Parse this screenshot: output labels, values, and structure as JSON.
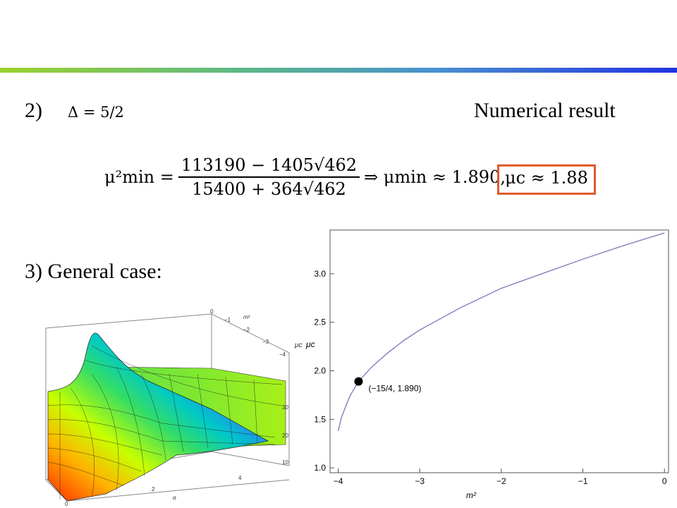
{
  "slide": {
    "case2_label": "2)",
    "case2_formula": "Δ = 5/2",
    "numerical_label": "Numerical result",
    "mu_min_lhs": "μ²min =",
    "mu_min_numerator": "113190 − 1405√462",
    "mu_min_denominator": "15400 + 364√462",
    "mu_min_rhs": "⇒ μmin ≈ 1.890,",
    "mu_c_result": "μc ≈ 1.88",
    "case3_label": "3) General case:"
  },
  "colors": {
    "accent_box": "#e05a2b",
    "curve": "#7777bb"
  },
  "surface_plot": {
    "axis_label_m2": "m²",
    "axis_label_mu": "μc",
    "axis_label_alpha": "α",
    "tick_m2": [
      "0",
      "−1",
      "−2",
      "−3",
      "−4"
    ],
    "tick_mu": [
      "30",
      "20",
      "10"
    ],
    "tick_alpha": [
      "0",
      "2",
      "4"
    ]
  },
  "chart_data": {
    "type": "line",
    "xlabel": "m²",
    "ylabel": "μc",
    "xlim": [
      -4.1,
      0.05
    ],
    "ylim": [
      0.95,
      3.45
    ],
    "x_ticks": [
      -4,
      -3,
      -2,
      -1,
      0
    ],
    "y_ticks": [
      1.0,
      1.5,
      2.0,
      2.5,
      3.0
    ],
    "x_tick_labels": [
      "−4",
      "−3",
      "−2",
      "−1",
      "0"
    ],
    "y_tick_labels": [
      "1.0",
      "1.5",
      "2.0",
      "2.5",
      "3.0"
    ],
    "series": [
      {
        "x": [
          -4.0,
          -3.96,
          -3.9,
          -3.85,
          -3.75,
          -3.6,
          -3.4,
          -3.2,
          -3.0,
          -2.5,
          -2.0,
          -1.5,
          -1.0,
          -0.5,
          0.0
        ],
        "y": [
          1.38,
          1.52,
          1.65,
          1.75,
          1.89,
          2.03,
          2.18,
          2.31,
          2.42,
          2.65,
          2.85,
          3.0,
          3.15,
          3.29,
          3.42
        ]
      }
    ],
    "annotations": [
      {
        "x": -3.75,
        "y": 1.89,
        "text": "(−15/4, 1.890)"
      }
    ]
  }
}
